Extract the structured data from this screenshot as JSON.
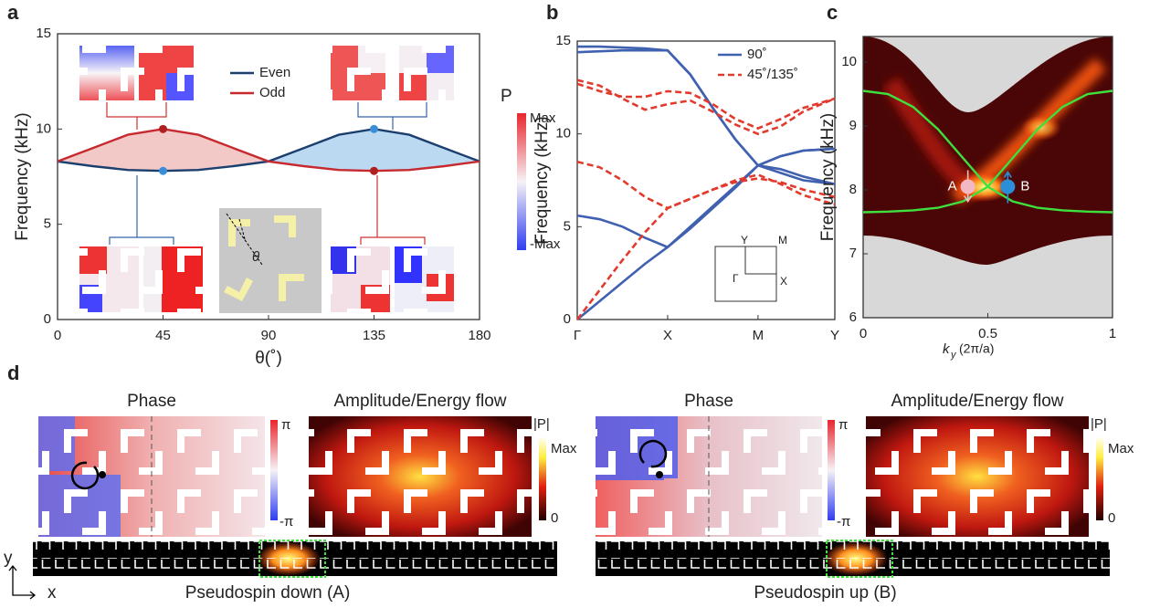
{
  "panel_labels": [
    "a",
    "b",
    "c",
    "d"
  ],
  "chart_data": [
    {
      "type": "line",
      "x_label": "θ(˚)",
      "y_label": "Frequency (kHz)",
      "x": [
        0,
        15,
        30,
        45,
        60,
        75,
        90,
        105,
        120,
        135,
        150,
        165,
        180
      ],
      "series": [
        {
          "name": "Even",
          "color": "#1b3f6e",
          "values": [
            8.3,
            8.05,
            7.85,
            7.8,
            7.85,
            8.05,
            8.3,
            9.0,
            9.7,
            10.0,
            9.7,
            9.0,
            8.3
          ]
        },
        {
          "name": "Odd",
          "color": "#c62a2f",
          "values": [
            8.3,
            9.0,
            9.7,
            10.0,
            9.7,
            9.0,
            8.3,
            8.05,
            7.85,
            7.8,
            7.85,
            8.05,
            8.3
          ]
        }
      ],
      "fills": [
        "#f3c9c8",
        "#bcd9f2"
      ],
      "xlim": [
        0,
        180
      ],
      "ylim": [
        0,
        15
      ],
      "xticks": [
        0,
        45,
        90,
        135,
        180
      ],
      "yticks": [
        0,
        5,
        10,
        15
      ],
      "colorbar": {
        "title": "P",
        "max_label": "Max",
        "min_label": "-Max"
      },
      "inset_label": "θ"
    },
    {
      "type": "band",
      "y_label": "Frequency (kHz)",
      "x": [
        0,
        0.25,
        0.5,
        0.75,
        1,
        1.25,
        1.5,
        1.75,
        2,
        2.25,
        2.5,
        2.85
      ],
      "xlim": [
        0,
        2.85
      ],
      "xticks": [
        {
          "value": 0,
          "label": "Γ"
        },
        {
          "value": 1,
          "label": "X"
        },
        {
          "value": 2,
          "label": "M"
        },
        {
          "value": 2.85,
          "label": "Y"
        }
      ],
      "ylim": [
        0,
        15
      ],
      "yticks": [
        0,
        5,
        10,
        15
      ],
      "series": [
        {
          "name": "90˚",
          "color": "#4060b0",
          "dashed": false,
          "bands": [
            [
              0,
              1.0,
              2.0,
              3.0,
              3.9,
              5.0,
              6.1,
              7.2,
              8.3,
              8.8,
              9.1,
              9.2
            ],
            [
              5.6,
              5.4,
              5.0,
              4.4,
              3.9,
              4.9,
              6.0,
              7.1,
              8.3,
              7.9,
              7.5,
              7.3
            ],
            [
              14.7,
              14.7,
              14.65,
              14.6,
              14.5,
              13.2,
              11.4,
              9.7,
              8.3,
              8.1,
              7.7,
              7.3
            ],
            [
              14.4,
              14.45,
              14.5,
              14.5,
              14.5,
              13.2,
              11.4,
              9.7,
              8.3,
              8.8,
              9.1,
              9.2
            ]
          ]
        },
        {
          "name": "45˚/135˚",
          "color": "#e23a2c",
          "dashed": true,
          "bands": [
            [
              0,
              1.6,
              3.2,
              4.7,
              6.0,
              6.5,
              7.0,
              7.5,
              7.8,
              7.3,
              6.7,
              6.2
            ],
            [
              8.5,
              8.2,
              7.5,
              6.6,
              6.0,
              6.5,
              7.0,
              7.4,
              7.6,
              7.4,
              7.0,
              6.6
            ],
            [
              12.9,
              12.6,
              11.9,
              11.3,
              11.6,
              11.8,
              11.2,
              10.5,
              10.0,
              10.4,
              11.2,
              11.9
            ],
            [
              12.7,
              12.3,
              12.0,
              12.0,
              12.3,
              12.2,
              11.6,
              10.8,
              10.3,
              10.8,
              11.4,
              11.9
            ]
          ]
        }
      ],
      "inset_labels": [
        "Y",
        "M",
        "Γ",
        "X"
      ]
    },
    {
      "type": "dispersion",
      "y_label": "Frequency (kHz)",
      "x_label": {
        "main": "k",
        "sub": "y",
        "unit": "(2π/a)"
      },
      "x": [
        0,
        0.1,
        0.2,
        0.3,
        0.4,
        0.5,
        0.6,
        0.7,
        0.8,
        0.9,
        1
      ],
      "xlim": [
        0,
        1
      ],
      "ylim": [
        6,
        10.4
      ],
      "xticks": [
        0,
        0.5,
        1
      ],
      "yticks": [
        6,
        7,
        8,
        9,
        10
      ],
      "series": [
        {
          "color": "#3ee03e",
          "values": [
            9.55,
            9.5,
            9.3,
            8.95,
            8.5,
            8.05,
            7.82,
            7.72,
            7.68,
            7.66,
            7.65
          ]
        },
        {
          "color": "#3ee03e",
          "values": [
            7.65,
            7.66,
            7.68,
            7.72,
            7.82,
            8.05,
            8.5,
            8.95,
            9.3,
            9.5,
            9.55
          ]
        }
      ],
      "points": [
        {
          "label": "A",
          "x": 0.42,
          "y": 8.05,
          "color": "#f2b8c4"
        },
        {
          "label": "B",
          "x": 0.58,
          "y": 8.05,
          "color": "#2b8fd8"
        }
      ]
    }
  ],
  "panel_d": {
    "halves": [
      {
        "phase_title": "Phase",
        "amp_title": "Amplitude/Energy flow",
        "phase_max": "π",
        "phase_min": "-π",
        "amp_bar_title": "|P|",
        "amp_max": "Max",
        "amp_min": "0",
        "caption": "Pseudospin down (A)"
      },
      {
        "phase_title": "Phase",
        "amp_title": "Amplitude/Energy flow",
        "phase_max": "π",
        "phase_min": "-π",
        "amp_bar_title": "|P|",
        "amp_max": "Max",
        "amp_min": "0",
        "caption": "Pseudospin up (B)"
      }
    ],
    "axes": [
      "y",
      "x"
    ]
  }
}
